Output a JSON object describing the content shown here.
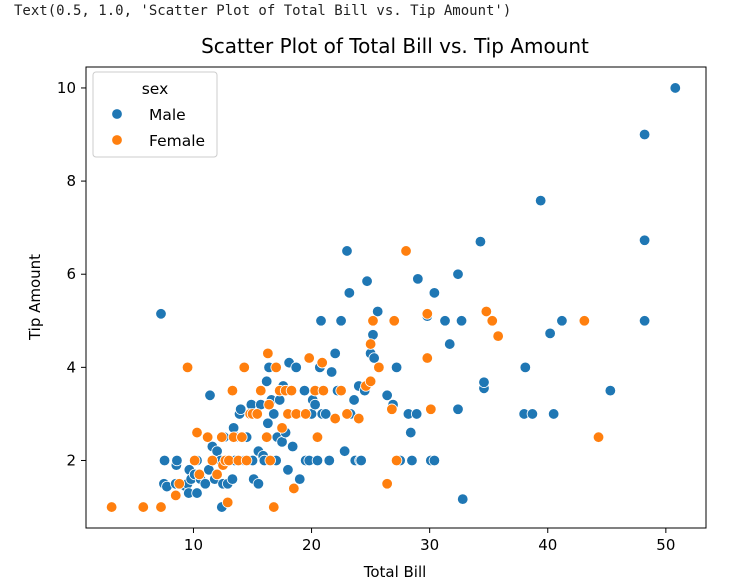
{
  "output_repr": "Text(0.5, 1.0, 'Scatter Plot of Total Bill vs. Tip Amount')",
  "colors": {
    "Male": "#1f77b4",
    "Female": "#ff7f0e"
  },
  "chart_data": {
    "type": "scatter",
    "title": "Scatter Plot of Total Bill vs. Tip Amount",
    "xlabel": "Total Bill",
    "ylabel": "Tip Amount",
    "xlim": [
      0.9,
      53.4
    ],
    "ylim": [
      0.55,
      10.45
    ],
    "xticks": [
      10,
      20,
      30,
      40,
      50
    ],
    "yticks": [
      2,
      4,
      6,
      8,
      10
    ],
    "grid": false,
    "legend": {
      "title": "sex",
      "position": "top-left",
      "entries": [
        "Male",
        "Female"
      ]
    },
    "series": [
      {
        "name": "Male",
        "points": [
          [
            7.25,
            5.15
          ],
          [
            7.5,
            1.5
          ],
          [
            7.55,
            2.0
          ],
          [
            7.75,
            1.44
          ],
          [
            8.5,
            1.5
          ],
          [
            8.55,
            1.9
          ],
          [
            8.6,
            2.0
          ],
          [
            9.3,
            1.45
          ],
          [
            9.5,
            1.5
          ],
          [
            9.6,
            1.3
          ],
          [
            9.65,
            1.8
          ],
          [
            9.8,
            1.6
          ],
          [
            10.1,
            1.7
          ],
          [
            10.3,
            1.3
          ],
          [
            10.3,
            2.0
          ],
          [
            10.6,
            1.6
          ],
          [
            11.0,
            1.5
          ],
          [
            11.3,
            1.8
          ],
          [
            11.4,
            3.4
          ],
          [
            11.6,
            2.3
          ],
          [
            11.8,
            1.6
          ],
          [
            12.0,
            2.2
          ],
          [
            12.3,
            2.0
          ],
          [
            12.4,
            1.0
          ],
          [
            12.5,
            1.5
          ],
          [
            12.6,
            2.5
          ],
          [
            12.7,
            2.0
          ],
          [
            12.9,
            1.5
          ],
          [
            13.0,
            2.0
          ],
          [
            13.3,
            1.6
          ],
          [
            13.4,
            2.7
          ],
          [
            13.5,
            2.0
          ],
          [
            13.6,
            2.5
          ],
          [
            13.9,
            3.0
          ],
          [
            14.0,
            3.1
          ],
          [
            14.3,
            2.0
          ],
          [
            14.5,
            2.5
          ],
          [
            14.7,
            2.0
          ],
          [
            14.9,
            3.2
          ],
          [
            15.0,
            2.0
          ],
          [
            15.1,
            1.6
          ],
          [
            15.3,
            3.0
          ],
          [
            15.5,
            1.5
          ],
          [
            15.5,
            2.2
          ],
          [
            15.7,
            3.2
          ],
          [
            15.9,
            2.1
          ],
          [
            16.0,
            2.0
          ],
          [
            16.2,
            3.7
          ],
          [
            16.3,
            2.8
          ],
          [
            16.4,
            4.0
          ],
          [
            16.6,
            3.3
          ],
          [
            16.8,
            3.0
          ],
          [
            17.0,
            2.0
          ],
          [
            17.1,
            2.5
          ],
          [
            17.3,
            3.3
          ],
          [
            17.5,
            2.4
          ],
          [
            17.6,
            3.6
          ],
          [
            17.8,
            2.6
          ],
          [
            18.0,
            3.0
          ],
          [
            18.0,
            1.8
          ],
          [
            18.1,
            4.1
          ],
          [
            18.3,
            3.5
          ],
          [
            18.4,
            2.3
          ],
          [
            18.7,
            4.0
          ],
          [
            18.8,
            3.0
          ],
          [
            19.0,
            1.6
          ],
          [
            19.4,
            3.5
          ],
          [
            19.5,
            2.0
          ],
          [
            19.8,
            2.0
          ],
          [
            20.0,
            3.0
          ],
          [
            20.1,
            3.3
          ],
          [
            20.3,
            3.2
          ],
          [
            20.5,
            2.0
          ],
          [
            20.7,
            4.0
          ],
          [
            20.8,
            5.0
          ],
          [
            20.9,
            3.0
          ],
          [
            21.0,
            3.5
          ],
          [
            21.2,
            3.0
          ],
          [
            21.5,
            2.0
          ],
          [
            21.7,
            3.9
          ],
          [
            22.0,
            4.3
          ],
          [
            22.2,
            3.5
          ],
          [
            22.5,
            5.0
          ],
          [
            22.8,
            2.2
          ],
          [
            23.0,
            6.5
          ],
          [
            23.2,
            5.6
          ],
          [
            23.3,
            3.0
          ],
          [
            23.6,
            3.3
          ],
          [
            23.7,
            2.0
          ],
          [
            24.0,
            3.6
          ],
          [
            24.1,
            2.0
          ],
          [
            24.2,
            2.0
          ],
          [
            24.5,
            3.5
          ],
          [
            24.7,
            5.85
          ],
          [
            25.0,
            4.3
          ],
          [
            25.2,
            4.7
          ],
          [
            25.3,
            4.2
          ],
          [
            25.6,
            5.2
          ],
          [
            26.4,
            3.4
          ],
          [
            26.9,
            3.2
          ],
          [
            27.2,
            4.0
          ],
          [
            27.5,
            2.0
          ],
          [
            28.2,
            3.0
          ],
          [
            28.4,
            2.6
          ],
          [
            28.5,
            2.0
          ],
          [
            28.9,
            3.0
          ],
          [
            29.0,
            5.9
          ],
          [
            29.8,
            5.1
          ],
          [
            30.1,
            2.0
          ],
          [
            30.4,
            2.0
          ],
          [
            30.4,
            5.6
          ],
          [
            31.3,
            5.0
          ],
          [
            31.7,
            4.5
          ],
          [
            32.4,
            6.0
          ],
          [
            32.4,
            3.1
          ],
          [
            32.7,
            5.0
          ],
          [
            32.8,
            1.17
          ],
          [
            34.3,
            6.7
          ],
          [
            34.6,
            3.55
          ],
          [
            34.6,
            3.68
          ],
          [
            38.0,
            3.0
          ],
          [
            38.1,
            4.0
          ],
          [
            38.7,
            3.0
          ],
          [
            39.4,
            7.58
          ],
          [
            40.2,
            4.73
          ],
          [
            40.5,
            3.0
          ],
          [
            41.2,
            5.0
          ],
          [
            45.3,
            3.5
          ],
          [
            48.2,
            9.0
          ],
          [
            48.2,
            6.73
          ],
          [
            48.2,
            5.0
          ],
          [
            50.8,
            10.0
          ]
        ]
      },
      {
        "name": "Female",
        "points": [
          [
            3.07,
            1.0
          ],
          [
            5.75,
            1.0
          ],
          [
            7.25,
            1.0
          ],
          [
            8.5,
            1.25
          ],
          [
            8.8,
            1.5
          ],
          [
            9.5,
            4.0
          ],
          [
            10.1,
            2.0
          ],
          [
            10.3,
            2.6
          ],
          [
            10.5,
            1.7
          ],
          [
            11.2,
            2.5
          ],
          [
            11.6,
            2.0
          ],
          [
            12.0,
            1.7
          ],
          [
            12.4,
            2.5
          ],
          [
            12.5,
            1.9
          ],
          [
            12.7,
            2.0
          ],
          [
            12.9,
            1.1
          ],
          [
            13.0,
            2.0
          ],
          [
            13.3,
            3.5
          ],
          [
            13.4,
            2.5
          ],
          [
            13.8,
            2.0
          ],
          [
            14.1,
            2.5
          ],
          [
            14.3,
            4.0
          ],
          [
            14.5,
            2.0
          ],
          [
            14.8,
            3.0
          ],
          [
            15.0,
            3.0
          ],
          [
            15.4,
            3.0
          ],
          [
            15.7,
            3.5
          ],
          [
            16.2,
            2.5
          ],
          [
            16.3,
            4.3
          ],
          [
            16.4,
            3.2
          ],
          [
            16.5,
            2.0
          ],
          [
            16.8,
            1.0
          ],
          [
            17.0,
            4.0
          ],
          [
            17.3,
            3.5
          ],
          [
            17.5,
            2.7
          ],
          [
            17.8,
            3.5
          ],
          [
            18.0,
            3.0
          ],
          [
            18.3,
            3.5
          ],
          [
            18.5,
            1.4
          ],
          [
            18.7,
            3.0
          ],
          [
            19.5,
            3.0
          ],
          [
            19.8,
            4.2
          ],
          [
            20.3,
            3.5
          ],
          [
            20.5,
            2.5
          ],
          [
            20.9,
            4.1
          ],
          [
            21.0,
            3.5
          ],
          [
            22.0,
            2.9
          ],
          [
            22.5,
            3.5
          ],
          [
            23.0,
            3.0
          ],
          [
            24.0,
            2.9
          ],
          [
            24.6,
            3.6
          ],
          [
            25.0,
            3.7
          ],
          [
            25.0,
            4.5
          ],
          [
            25.2,
            5.0
          ],
          [
            25.7,
            4.0
          ],
          [
            26.4,
            1.5
          ],
          [
            26.8,
            3.1
          ],
          [
            27.0,
            5.0
          ],
          [
            27.2,
            2.0
          ],
          [
            28.0,
            6.5
          ],
          [
            29.8,
            4.2
          ],
          [
            29.8,
            5.15
          ],
          [
            30.1,
            3.1
          ],
          [
            34.8,
            5.2
          ],
          [
            35.3,
            5.0
          ],
          [
            35.8,
            4.67
          ],
          [
            43.1,
            5.0
          ],
          [
            44.3,
            2.5
          ]
        ]
      }
    ]
  }
}
